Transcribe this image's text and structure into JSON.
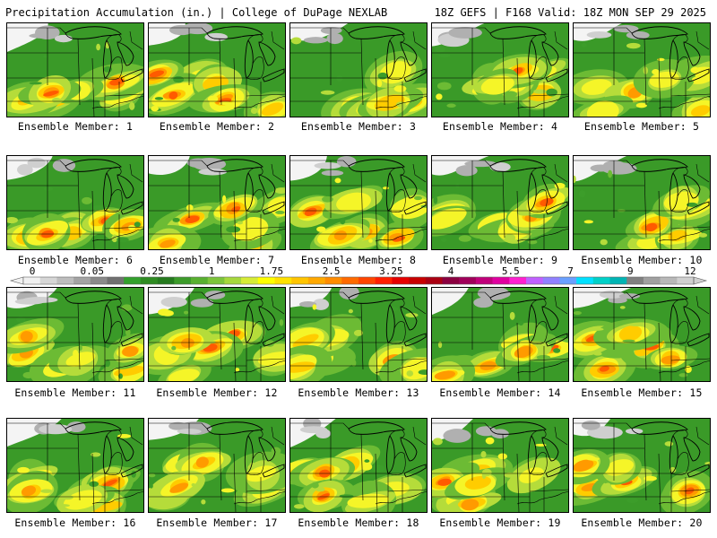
{
  "header": {
    "left": "Precipitation Accumulation (in.) | College of DuPage NEXLAB",
    "right": "18Z GEFS | F168 Valid: 18Z MON SEP 29 2025"
  },
  "label_prefix": "Ensemble Member:",
  "panels": [
    {
      "member": 1,
      "label": "Ensemble Member: 1"
    },
    {
      "member": 2,
      "label": "Ensemble Member: 2"
    },
    {
      "member": 3,
      "label": "Ensemble Member: 3"
    },
    {
      "member": 4,
      "label": "Ensemble Member: 4"
    },
    {
      "member": 5,
      "label": "Ensemble Member: 5"
    },
    {
      "member": 6,
      "label": "Ensemble Member: 6"
    },
    {
      "member": 7,
      "label": "Ensemble Member: 7"
    },
    {
      "member": 8,
      "label": "Ensemble Member: 8"
    },
    {
      "member": 9,
      "label": "Ensemble Member: 9"
    },
    {
      "member": 10,
      "label": "Ensemble Member: 10"
    },
    {
      "member": 11,
      "label": "Ensemble Member: 11"
    },
    {
      "member": 12,
      "label": "Ensemble Member: 12"
    },
    {
      "member": 13,
      "label": "Ensemble Member: 13"
    },
    {
      "member": 14,
      "label": "Ensemble Member: 14"
    },
    {
      "member": 15,
      "label": "Ensemble Member: 15"
    },
    {
      "member": 16,
      "label": "Ensemble Member: 16"
    },
    {
      "member": 17,
      "label": "Ensemble Member: 17"
    },
    {
      "member": 18,
      "label": "Ensemble Member: 18"
    },
    {
      "member": 19,
      "label": "Ensemble Member: 19"
    },
    {
      "member": 20,
      "label": "Ensemble Member: 20"
    }
  ],
  "colorbar": {
    "labels": [
      "0",
      "0.05",
      "0.25",
      "1",
      "1.75",
      "2.5",
      "3.25",
      "4",
      "5.5",
      "7",
      "9",
      "12"
    ],
    "colors": [
      "#f0f0f0",
      "#d6d6d6",
      "#bdbdbd",
      "#a3a3a3",
      "#8a8a8a",
      "#707070",
      "#33a02c",
      "#2e8b22",
      "#257a1e",
      "#3c9b2a",
      "#58b030",
      "#7cc43a",
      "#a6d83c",
      "#d6ec36",
      "#ffff00",
      "#ffe100",
      "#ffc400",
      "#ffa800",
      "#ff8c00",
      "#ff6a00",
      "#ff4500",
      "#ff1f00",
      "#e60000",
      "#c80000",
      "#aa0012",
      "#8b0040",
      "#a0005a",
      "#c0007a",
      "#e000a0",
      "#ff20d0",
      "#c060ff",
      "#9080ff",
      "#6aa0ff",
      "#00e0ff",
      "#00d0c8",
      "#00b4b4",
      "#808080",
      "#a0a0a0",
      "#b8b8b8",
      "#d0d0d0"
    ]
  }
}
